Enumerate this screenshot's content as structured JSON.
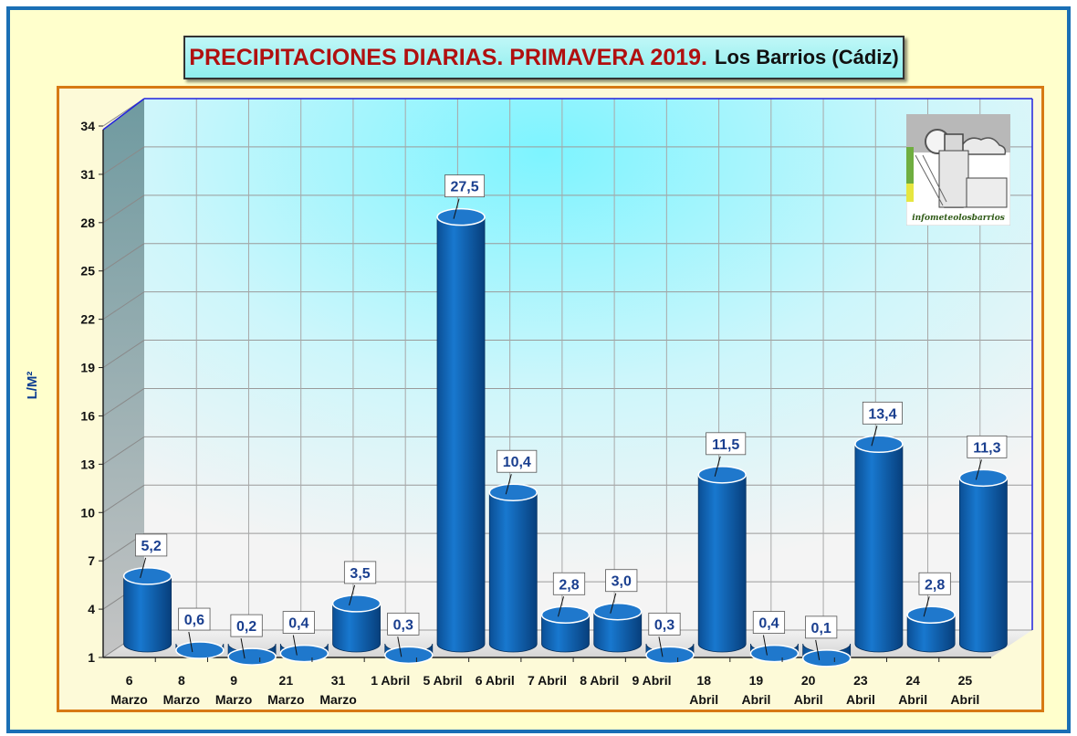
{
  "chart_data": {
    "type": "bar",
    "title": "PRECIPITACIONES DIARIAS. PRIMAVERA 2019.",
    "subtitle": "Los Barrios (Cádiz)",
    "ylabel": "L/M²",
    "xlabel": "",
    "ylim": [
      1,
      34
    ],
    "yticks": [
      "1",
      "4",
      "7",
      "10",
      "13",
      "16",
      "19",
      "22",
      "25",
      "28",
      "31",
      "34"
    ],
    "grid": true,
    "categories": [
      [
        "6",
        "Marzo"
      ],
      [
        "8",
        "Marzo"
      ],
      [
        "9",
        "Marzo"
      ],
      [
        "21",
        "Marzo"
      ],
      [
        "31",
        "Marzo"
      ],
      [
        "1 Abril"
      ],
      [
        "5 Abril"
      ],
      [
        "6 Abril"
      ],
      [
        "7 Abril"
      ],
      [
        "8 Abril"
      ],
      [
        "9 Abril"
      ],
      [
        "18",
        "Abril"
      ],
      [
        "19",
        "Abril"
      ],
      [
        "20",
        "Abril"
      ],
      [
        "23",
        "Abril"
      ],
      [
        "24",
        "Abril"
      ],
      [
        "25",
        "Abril"
      ]
    ],
    "values": [
      5.2,
      0.6,
      0.2,
      0.4,
      3.5,
      0.3,
      27.5,
      10.4,
      2.8,
      3.0,
      0.3,
      11.5,
      0.4,
      0.1,
      13.4,
      2.8,
      11.3
    ],
    "data_labels": [
      "5,2",
      "0,6",
      "0,2",
      "0,4",
      "3,5",
      "0,3",
      "27,5",
      "10,4",
      "2,8",
      "3,0",
      "0,3",
      "11,5",
      "0,4",
      "0,1",
      "13,4",
      "2,8",
      "11,3"
    ],
    "colors": {
      "bar": "#0a5aa6",
      "bar_top": "#1f78cc",
      "label_text": "#1a3f8f",
      "title": "#b01010",
      "border": "#d77a14"
    }
  },
  "logo": {
    "text": "infometeolosbarrios"
  }
}
